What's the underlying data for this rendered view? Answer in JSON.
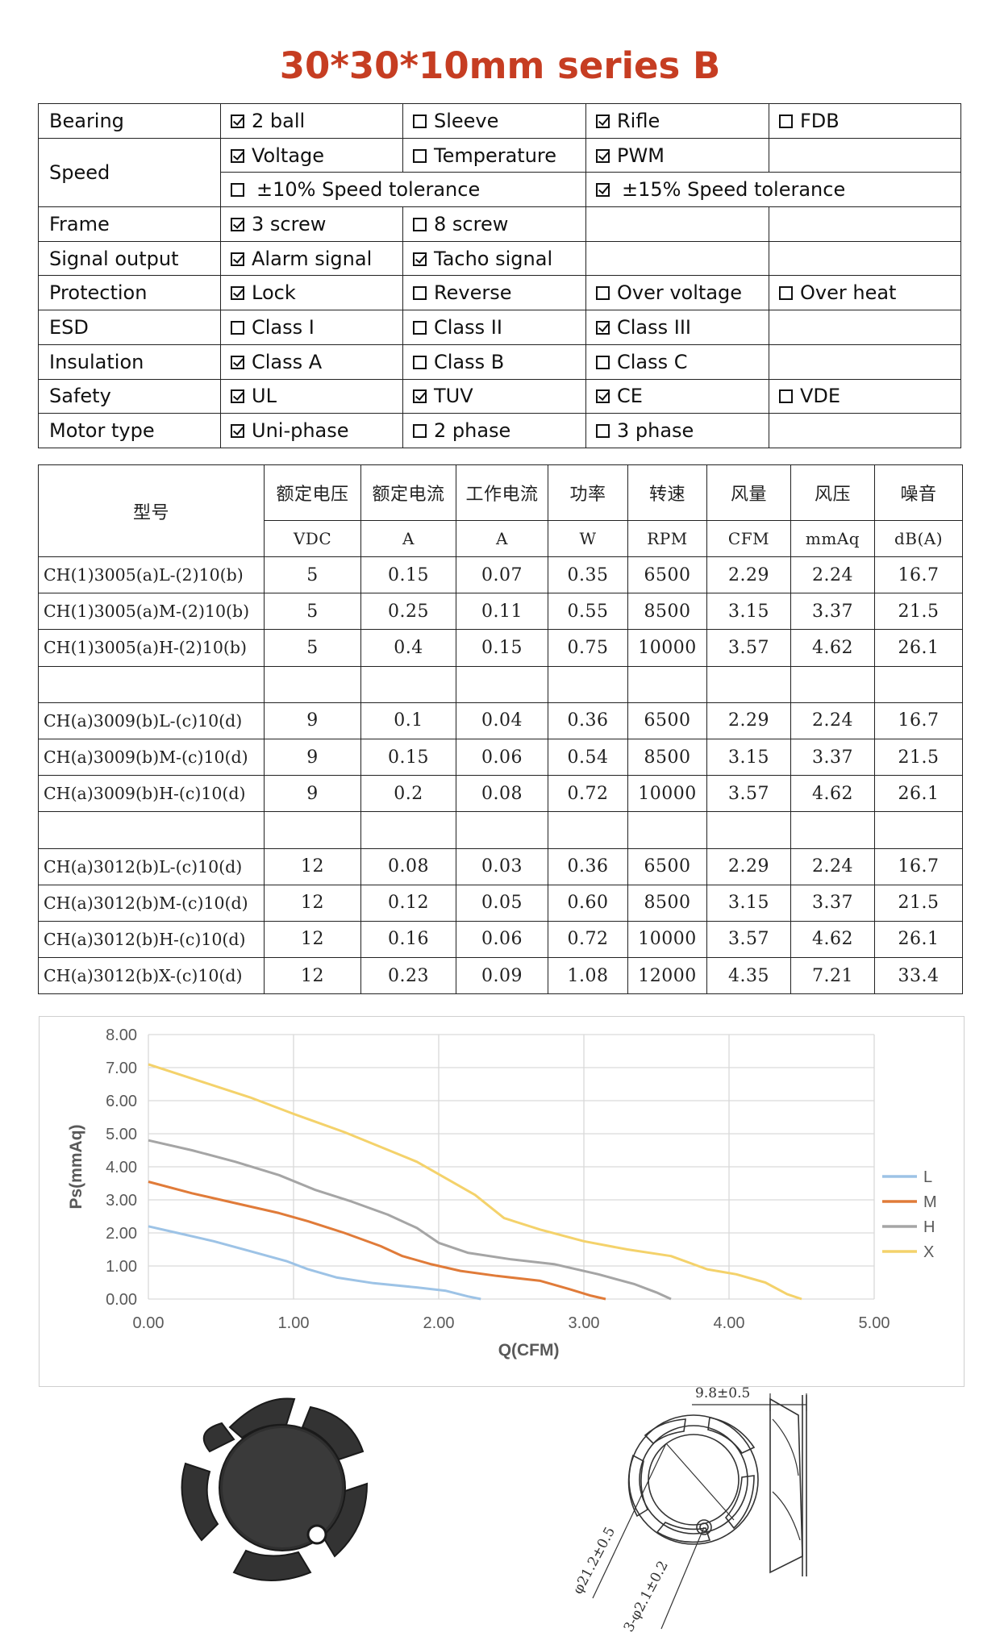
{
  "title": "30*30*10mm series B",
  "spec": {
    "rows": [
      {
        "label": "Bearing",
        "cells": [
          {
            "text": "2 ball",
            "checked": true
          },
          {
            "text": "Sleeve",
            "checked": false
          },
          {
            "text": "Rifle",
            "checked": true
          },
          {
            "text": "FDB",
            "checked": false
          }
        ]
      },
      {
        "label": "Speed",
        "cells": [
          {
            "text": "Voltage",
            "checked": true
          },
          {
            "text": "Temperature",
            "checked": false
          },
          {
            "text": "PWM",
            "checked": true
          },
          {
            "text": "",
            "checked": null
          }
        ]
      },
      {
        "label": "",
        "cells": [
          {
            "text": "±10% Speed tolerance",
            "checked": false
          },
          {
            "text": "±15% Speed tolerance",
            "checked": true
          }
        ]
      },
      {
        "label": "Frame",
        "cells": [
          {
            "text": "3 screw",
            "checked": true
          },
          {
            "text": "8 screw",
            "checked": false
          },
          {
            "text": "",
            "checked": null
          },
          {
            "text": "",
            "checked": null
          }
        ]
      },
      {
        "label": "Signal output",
        "cells": [
          {
            "text": "Alarm signal",
            "checked": true
          },
          {
            "text": "Tacho signal",
            "checked": true
          },
          {
            "text": "",
            "checked": null
          },
          {
            "text": "",
            "checked": null
          }
        ]
      },
      {
        "label": "Protection",
        "cells": [
          {
            "text": "Lock",
            "checked": true
          },
          {
            "text": "Reverse",
            "checked": false
          },
          {
            "text": "Over voltage",
            "checked": false
          },
          {
            "text": "Over heat",
            "checked": false
          }
        ]
      },
      {
        "label": "ESD",
        "cells": [
          {
            "text": "Class I",
            "checked": false
          },
          {
            "text": "Class II",
            "checked": false
          },
          {
            "text": "Class III",
            "checked": true
          },
          {
            "text": "",
            "checked": null
          }
        ]
      },
      {
        "label": "Insulation",
        "cells": [
          {
            "text": "Class A",
            "checked": true
          },
          {
            "text": "Class B",
            "checked": false
          },
          {
            "text": "Class C",
            "checked": false
          },
          {
            "text": "",
            "checked": null
          }
        ]
      },
      {
        "label": "Safety",
        "cells": [
          {
            "text": "UL",
            "checked": true
          },
          {
            "text": "TUV",
            "checked": true
          },
          {
            "text": "CE",
            "checked": true
          },
          {
            "text": "VDE",
            "checked": false
          }
        ]
      },
      {
        "label": "Motor type",
        "cells": [
          {
            "text": "Uni-phase",
            "checked": true
          },
          {
            "text": "2 phase",
            "checked": false
          },
          {
            "text": "3 phase",
            "checked": false
          },
          {
            "text": "",
            "checked": null
          }
        ]
      }
    ]
  },
  "models": {
    "header_model": "型号",
    "headers": [
      "额定电压",
      "额定电流",
      "工作电流",
      "功率",
      "转速",
      "风量",
      "风压",
      "噪音"
    ],
    "units": [
      "VDC",
      "A",
      "A",
      "W",
      "RPM",
      "CFM",
      "mmAq",
      "dB(A)"
    ],
    "groups": [
      [
        [
          "CH(1)3005(a)L-(2)10(b)",
          "5",
          "0.15",
          "0.07",
          "0.35",
          "6500",
          "2.29",
          "2.24",
          "16.7"
        ],
        [
          "CH(1)3005(a)M-(2)10(b)",
          "5",
          "0.25",
          "0.11",
          "0.55",
          "8500",
          "3.15",
          "3.37",
          "21.5"
        ],
        [
          "CH(1)3005(a)H-(2)10(b)",
          "5",
          "0.4",
          "0.15",
          "0.75",
          "10000",
          "3.57",
          "4.62",
          "26.1"
        ]
      ],
      [
        [
          "CH(a)3009(b)L-(c)10(d)",
          "9",
          "0.1",
          "0.04",
          "0.36",
          "6500",
          "2.29",
          "2.24",
          "16.7"
        ],
        [
          "CH(a)3009(b)M-(c)10(d)",
          "9",
          "0.15",
          "0.06",
          "0.54",
          "8500",
          "3.15",
          "3.37",
          "21.5"
        ],
        [
          "CH(a)3009(b)H-(c)10(d)",
          "9",
          "0.2",
          "0.08",
          "0.72",
          "10000",
          "3.57",
          "4.62",
          "26.1"
        ]
      ],
      [
        [
          "CH(a)3012(b)L-(c)10(d)",
          "12",
          "0.08",
          "0.03",
          "0.36",
          "6500",
          "2.29",
          "2.24",
          "16.7"
        ],
        [
          "CH(a)3012(b)M-(c)10(d)",
          "12",
          "0.12",
          "0.05",
          "0.60",
          "8500",
          "3.15",
          "3.37",
          "21.5"
        ],
        [
          "CH(a)3012(b)H-(c)10(d)",
          "12",
          "0.16",
          "0.06",
          "0.72",
          "10000",
          "3.57",
          "4.62",
          "26.1"
        ],
        [
          "CH(a)3012(b)X-(c)10(d)",
          "12",
          "0.23",
          "0.09",
          "1.08",
          "12000",
          "4.35",
          "7.21",
          "33.4"
        ]
      ]
    ]
  },
  "chart_data": {
    "type": "line",
    "title": "",
    "xlabel": "Q(CFM)",
    "ylabel": "Ps(mmAq)",
    "xlim": [
      0,
      5
    ],
    "ylim": [
      0,
      8
    ],
    "xticks": [
      "0.00",
      "1.00",
      "2.00",
      "3.00",
      "4.00",
      "5.00"
    ],
    "yticks": [
      "0.00",
      "1.00",
      "2.00",
      "3.00",
      "4.00",
      "5.00",
      "6.00",
      "7.00",
      "8.00"
    ],
    "grid": true,
    "legend": "right",
    "series": [
      {
        "name": "L",
        "color": "#9dc3e6",
        "points": [
          [
            0,
            2.2
          ],
          [
            0.2,
            2.0
          ],
          [
            0.45,
            1.75
          ],
          [
            0.7,
            1.45
          ],
          [
            0.95,
            1.15
          ],
          [
            1.1,
            0.9
          ],
          [
            1.3,
            0.65
          ],
          [
            1.55,
            0.48
          ],
          [
            1.85,
            0.35
          ],
          [
            2.05,
            0.25
          ],
          [
            2.2,
            0.08
          ],
          [
            2.29,
            0
          ]
        ]
      },
      {
        "name": "M",
        "color": "#e07b39",
        "points": [
          [
            0,
            3.55
          ],
          [
            0.3,
            3.2
          ],
          [
            0.6,
            2.9
          ],
          [
            0.9,
            2.6
          ],
          [
            1.1,
            2.35
          ],
          [
            1.35,
            2.0
          ],
          [
            1.6,
            1.6
          ],
          [
            1.75,
            1.3
          ],
          [
            1.95,
            1.05
          ],
          [
            2.15,
            0.85
          ],
          [
            2.4,
            0.7
          ],
          [
            2.7,
            0.55
          ],
          [
            2.9,
            0.3
          ],
          [
            3.05,
            0.1
          ],
          [
            3.15,
            0
          ]
        ]
      },
      {
        "name": "H",
        "color": "#a5a5a5",
        "points": [
          [
            0,
            4.8
          ],
          [
            0.3,
            4.5
          ],
          [
            0.6,
            4.15
          ],
          [
            0.9,
            3.75
          ],
          [
            1.15,
            3.3
          ],
          [
            1.4,
            2.95
          ],
          [
            1.65,
            2.55
          ],
          [
            1.85,
            2.15
          ],
          [
            2.0,
            1.7
          ],
          [
            2.2,
            1.4
          ],
          [
            2.5,
            1.2
          ],
          [
            2.8,
            1.05
          ],
          [
            3.1,
            0.75
          ],
          [
            3.35,
            0.45
          ],
          [
            3.5,
            0.2
          ],
          [
            3.6,
            0
          ]
        ]
      },
      {
        "name": "X",
        "color": "#f4d26b",
        "points": [
          [
            0,
            7.1
          ],
          [
            0.35,
            6.6
          ],
          [
            0.7,
            6.1
          ],
          [
            1.0,
            5.6
          ],
          [
            1.35,
            5.05
          ],
          [
            1.6,
            4.6
          ],
          [
            1.85,
            4.15
          ],
          [
            2.05,
            3.65
          ],
          [
            2.25,
            3.15
          ],
          [
            2.45,
            2.45
          ],
          [
            2.7,
            2.1
          ],
          [
            3.0,
            1.75
          ],
          [
            3.3,
            1.5
          ],
          [
            3.6,
            1.3
          ],
          [
            3.85,
            0.9
          ],
          [
            4.05,
            0.75
          ],
          [
            4.25,
            0.5
          ],
          [
            4.4,
            0.15
          ],
          [
            4.5,
            0
          ]
        ]
      }
    ]
  },
  "drawing": {
    "dim_depth": "9.8±0.5",
    "dim_diameter": "φ21.2±0.5",
    "dim_holes": "3-φ2.1±0.2"
  }
}
